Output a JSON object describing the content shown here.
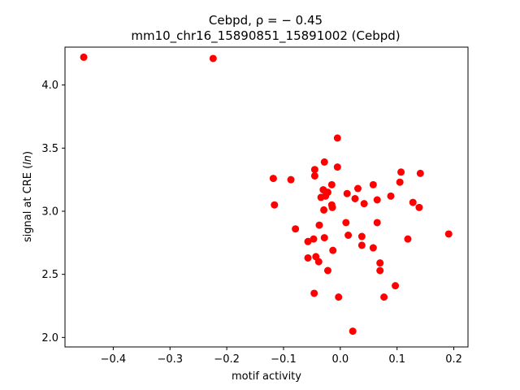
{
  "chart_data": {
    "type": "scatter",
    "title_line1": "Cebpd, ρ = − 0.45",
    "title_line2": "mm10_chr16_15890851_15891002 (Cebpd)",
    "xlabel": "motif activity",
    "ylabel": "signal at CRE (ln)",
    "xlim": [
      -0.485,
      0.225
    ],
    "ylim": [
      1.925,
      4.3
    ],
    "xticks": [
      -0.4,
      -0.3,
      -0.2,
      -0.1,
      0.0,
      0.1,
      0.2
    ],
    "xtick_labels": [
      "−0.4",
      "−0.3",
      "−0.2",
      "−0.1",
      "0.0",
      "0.1",
      "0.2"
    ],
    "yticks": [
      2.0,
      2.5,
      3.0,
      3.5,
      4.0
    ],
    "ytick_labels": [
      "2.0",
      "2.5",
      "3.0",
      "3.5",
      "4.0"
    ],
    "grid": false,
    "marker_color": "#ff0000",
    "points": [
      {
        "x": -0.452,
        "y": 4.22
      },
      {
        "x": -0.224,
        "y": 4.21
      },
      {
        "x": -0.118,
        "y": 3.26
      },
      {
        "x": -0.116,
        "y": 3.05
      },
      {
        "x": -0.087,
        "y": 3.25
      },
      {
        "x": -0.079,
        "y": 2.86
      },
      {
        "x": -0.057,
        "y": 2.76
      },
      {
        "x": -0.057,
        "y": 2.63
      },
      {
        "x": -0.047,
        "y": 2.78
      },
      {
        "x": -0.046,
        "y": 2.35
      },
      {
        "x": -0.045,
        "y": 3.33
      },
      {
        "x": -0.045,
        "y": 3.28
      },
      {
        "x": -0.043,
        "y": 2.64
      },
      {
        "x": -0.038,
        "y": 2.6
      },
      {
        "x": -0.037,
        "y": 2.89
      },
      {
        "x": -0.034,
        "y": 3.11
      },
      {
        "x": -0.03,
        "y": 3.17
      },
      {
        "x": -0.029,
        "y": 3.01
      },
      {
        "x": -0.028,
        "y": 2.79
      },
      {
        "x": -0.028,
        "y": 3.39
      },
      {
        "x": -0.026,
        "y": 3.12
      },
      {
        "x": -0.022,
        "y": 3.15
      },
      {
        "x": -0.022,
        "y": 2.53
      },
      {
        "x": -0.015,
        "y": 3.05
      },
      {
        "x": -0.015,
        "y": 3.21
      },
      {
        "x": -0.014,
        "y": 3.03
      },
      {
        "x": -0.013,
        "y": 2.69
      },
      {
        "x": -0.005,
        "y": 3.58
      },
      {
        "x": -0.005,
        "y": 3.35
      },
      {
        "x": -0.003,
        "y": 2.32
      },
      {
        "x": 0.01,
        "y": 2.91
      },
      {
        "x": 0.012,
        "y": 3.14
      },
      {
        "x": 0.014,
        "y": 2.81
      },
      {
        "x": 0.022,
        "y": 2.05
      },
      {
        "x": 0.026,
        "y": 3.1
      },
      {
        "x": 0.031,
        "y": 3.18
      },
      {
        "x": 0.038,
        "y": 2.73
      },
      {
        "x": 0.038,
        "y": 2.8
      },
      {
        "x": 0.042,
        "y": 3.06
      },
      {
        "x": 0.058,
        "y": 3.21
      },
      {
        "x": 0.058,
        "y": 2.71
      },
      {
        "x": 0.065,
        "y": 2.91
      },
      {
        "x": 0.065,
        "y": 3.09
      },
      {
        "x": 0.07,
        "y": 2.59
      },
      {
        "x": 0.07,
        "y": 2.53
      },
      {
        "x": 0.077,
        "y": 2.32
      },
      {
        "x": 0.089,
        "y": 3.12
      },
      {
        "x": 0.097,
        "y": 2.41
      },
      {
        "x": 0.105,
        "y": 3.23
      },
      {
        "x": 0.107,
        "y": 3.31
      },
      {
        "x": 0.119,
        "y": 2.78
      },
      {
        "x": 0.128,
        "y": 3.07
      },
      {
        "x": 0.139,
        "y": 3.03
      },
      {
        "x": 0.141,
        "y": 3.3
      },
      {
        "x": 0.191,
        "y": 2.82
      }
    ]
  }
}
